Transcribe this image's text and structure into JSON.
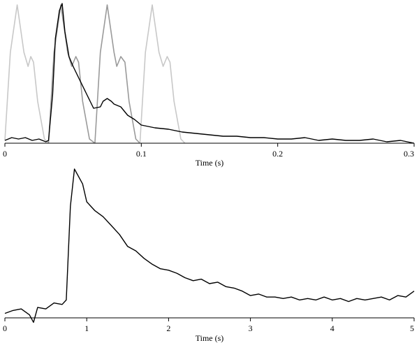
{
  "chart_data": [
    {
      "type": "line",
      "xlabel": "Time (s)",
      "ylabel": "",
      "xlim": [
        0,
        0.3
      ],
      "ylim": [
        0,
        1
      ],
      "xticks": [
        0,
        0.1,
        0.2,
        0.3
      ],
      "xtick_labels": [
        "0",
        "0.1",
        "0.2",
        "0.3"
      ],
      "grid": false,
      "legend": "none",
      "series": [
        {
          "color": "#c8c8c8",
          "x": [
            0,
            0.004,
            0.009,
            0.014,
            0.017,
            0.019,
            0.021,
            0.024,
            0.029,
            0.032
          ],
          "y": [
            0.02,
            0.65,
            0.99,
            0.65,
            0.55,
            0.62,
            0.58,
            0.3,
            0.03,
            0
          ]
        },
        {
          "color": "#9a9a9a",
          "x": [
            0.032,
            0.036,
            0.041,
            0.046,
            0.049,
            0.052,
            0.054,
            0.057,
            0.062,
            0.066
          ],
          "y": [
            0,
            0.65,
            0.99,
            0.65,
            0.55,
            0.62,
            0.58,
            0.3,
            0.03,
            0
          ]
        },
        {
          "color": "#9a9a9a",
          "x": [
            0.066,
            0.07,
            0.075,
            0.08,
            0.082,
            0.085,
            0.088,
            0.091,
            0.096,
            0.099
          ],
          "y": [
            0,
            0.65,
            0.99,
            0.65,
            0.55,
            0.62,
            0.58,
            0.3,
            0.03,
            0
          ]
        },
        {
          "color": "#c8c8c8",
          "x": [
            0.099,
            0.103,
            0.108,
            0.113,
            0.116,
            0.119,
            0.121,
            0.124,
            0.129,
            0.132
          ],
          "y": [
            0,
            0.65,
            0.99,
            0.65,
            0.55,
            0.62,
            0.58,
            0.3,
            0.03,
            0
          ]
        },
        {
          "color": "#000000",
          "x": [
            0,
            0.005,
            0.01,
            0.015,
            0.02,
            0.025,
            0.03,
            0.032,
            0.035,
            0.037,
            0.04,
            0.042,
            0.044,
            0.047,
            0.05,
            0.055,
            0.06,
            0.065,
            0.07,
            0.072,
            0.075,
            0.078,
            0.08,
            0.085,
            0.09,
            0.095,
            0.1,
            0.11,
            0.12,
            0.13,
            0.14,
            0.15,
            0.16,
            0.17,
            0.18,
            0.19,
            0.2,
            0.21,
            0.22,
            0.23,
            0.24,
            0.25,
            0.26,
            0.27,
            0.28,
            0.29,
            0.3
          ],
          "y": [
            0.02,
            0.04,
            0.03,
            0.04,
            0.02,
            0.03,
            0.01,
            0.02,
            0.35,
            0.75,
            0.95,
            1.0,
            0.8,
            0.62,
            0.55,
            0.45,
            0.35,
            0.25,
            0.26,
            0.3,
            0.32,
            0.3,
            0.28,
            0.26,
            0.2,
            0.17,
            0.13,
            0.11,
            0.1,
            0.08,
            0.07,
            0.06,
            0.05,
            0.05,
            0.04,
            0.04,
            0.03,
            0.03,
            0.04,
            0.02,
            0.03,
            0.02,
            0.02,
            0.03,
            0.01,
            0.02,
            0.0
          ]
        }
      ]
    },
    {
      "type": "line",
      "xlabel": "Time (s)",
      "ylabel": "",
      "xlim": [
        0,
        5
      ],
      "ylim": [
        0,
        1
      ],
      "xticks": [
        0,
        1,
        2,
        3,
        4,
        5
      ],
      "xtick_labels": [
        "0",
        "1",
        "2",
        "3",
        "4",
        "5"
      ],
      "grid": false,
      "legend": "none",
      "series": [
        {
          "color": "#000000",
          "x": [
            0,
            0.1,
            0.2,
            0.3,
            0.35,
            0.4,
            0.5,
            0.6,
            0.7,
            0.75,
            0.8,
            0.85,
            0.9,
            0.95,
            1.0,
            1.1,
            1.2,
            1.3,
            1.4,
            1.5,
            1.6,
            1.7,
            1.8,
            1.9,
            2.0,
            2.1,
            2.2,
            2.3,
            2.4,
            2.5,
            2.6,
            2.7,
            2.8,
            2.9,
            3.0,
            3.1,
            3.2,
            3.3,
            3.4,
            3.5,
            3.6,
            3.7,
            3.8,
            3.9,
            4.0,
            4.1,
            4.2,
            4.3,
            4.4,
            4.5,
            4.6,
            4.7,
            4.8,
            4.9,
            5.0
          ],
          "y": [
            0.03,
            0.05,
            0.06,
            0.02,
            -0.03,
            0.07,
            0.06,
            0.1,
            0.09,
            0.12,
            0.75,
            1.0,
            0.95,
            0.9,
            0.78,
            0.72,
            0.68,
            0.62,
            0.56,
            0.48,
            0.45,
            0.4,
            0.36,
            0.33,
            0.32,
            0.3,
            0.27,
            0.25,
            0.26,
            0.23,
            0.24,
            0.21,
            0.2,
            0.18,
            0.15,
            0.16,
            0.14,
            0.14,
            0.13,
            0.14,
            0.12,
            0.13,
            0.12,
            0.14,
            0.12,
            0.13,
            0.11,
            0.13,
            0.12,
            0.13,
            0.14,
            0.12,
            0.15,
            0.14,
            0.18
          ]
        }
      ]
    }
  ]
}
